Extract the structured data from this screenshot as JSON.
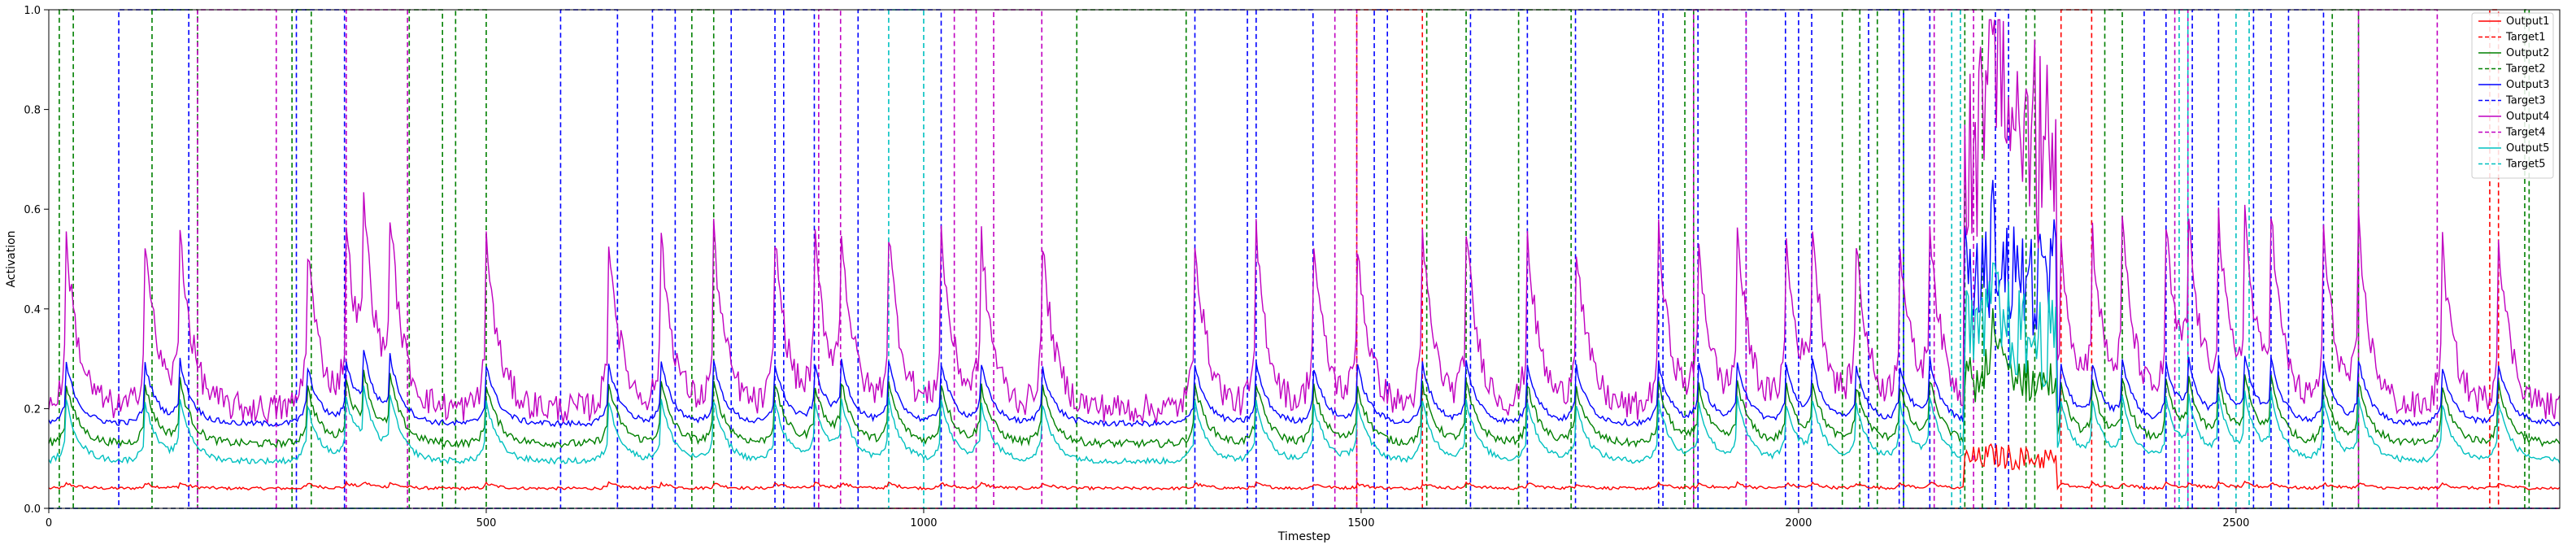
{
  "chart_data": {
    "type": "line",
    "title": "",
    "xlabel": "Timestep",
    "ylabel": "Activation",
    "xlim": [
      0,
      2870
    ],
    "ylim": [
      0,
      1.0
    ],
    "x_ticks": [
      0,
      500,
      1000,
      1500,
      2000,
      2500
    ],
    "y_ticks": [
      0.0,
      0.2,
      0.4,
      0.6,
      0.8,
      1.0
    ],
    "x_tick_labels": [
      "0",
      "500",
      "1000",
      "1500",
      "2000",
      "2500"
    ],
    "y_tick_labels": [
      "0.0",
      "0.2",
      "0.4",
      "0.6",
      "0.8",
      "1.0"
    ],
    "grid": false,
    "legend_position": "top-right",
    "series": [
      {
        "name": "Output1",
        "color": "#ff0000",
        "style": "solid",
        "base": 0.04,
        "spike": 0.01,
        "noise": 0.003
      },
      {
        "name": "Target1",
        "color": "#ff0000",
        "style": "dashed",
        "high_intervals": [
          [
            1495,
            1570
          ],
          [
            2300,
            2335
          ],
          [
            2790,
            2800
          ]
        ]
      },
      {
        "name": "Output2",
        "color": "#008000",
        "style": "solid",
        "base": 0.13,
        "spike": 0.12,
        "noise": 0.008
      },
      {
        "name": "Target2",
        "color": "#008000",
        "style": "dashed",
        "high_intervals": [
          [
            12,
            28
          ],
          [
            118,
            170
          ],
          [
            278,
            300
          ],
          [
            412,
            450
          ],
          [
            465,
            500
          ],
          [
            735,
            760
          ],
          [
            1175,
            1300
          ],
          [
            1575,
            1620
          ],
          [
            1680,
            1740
          ],
          [
            1870,
            1880
          ],
          [
            2050,
            2070
          ],
          [
            2090,
            2120
          ],
          [
            2190,
            2210
          ],
          [
            2260,
            2270
          ],
          [
            2350,
            2370
          ],
          [
            2610,
            2640
          ],
          [
            2830,
            2835
          ]
        ]
      },
      {
        "name": "Output3",
        "color": "#0000ff",
        "style": "solid",
        "base": 0.17,
        "spike": 0.12,
        "noise": 0.006
      },
      {
        "name": "Target3",
        "color": "#0000ff",
        "style": "dashed",
        "high_intervals": [
          [
            80,
            160
          ],
          [
            283,
            338
          ],
          [
            585,
            650
          ],
          [
            690,
            716
          ],
          [
            780,
            830
          ],
          [
            840,
            875
          ],
          [
            925,
            1020
          ],
          [
            1310,
            1370
          ],
          [
            1380,
            1445
          ],
          [
            1515,
            1530
          ],
          [
            1625,
            1690
          ],
          [
            1745,
            1840
          ],
          [
            1845,
            1885
          ],
          [
            1940,
            1985
          ],
          [
            2000,
            2015
          ],
          [
            2080,
            2115
          ],
          [
            2120,
            2150
          ],
          [
            2225,
            2240
          ],
          [
            2395,
            2420
          ],
          [
            2450,
            2480
          ],
          [
            2520,
            2540
          ],
          [
            2560,
            2600
          ]
        ]
      },
      {
        "name": "Output4",
        "color": "#c000c0",
        "style": "solid",
        "base": 0.2,
        "spike": 0.35,
        "noise": 0.03
      },
      {
        "name": "Target4",
        "color": "#c000c0",
        "style": "dashed",
        "high_intervals": [
          [
            170,
            260
          ],
          [
            340,
            410
          ],
          [
            880,
            905
          ],
          [
            1035,
            1060
          ],
          [
            1080,
            1135
          ],
          [
            1470,
            1495
          ],
          [
            1880,
            1940
          ],
          [
            2155,
            2200
          ],
          [
            2430,
            2445
          ],
          [
            2640,
            2730
          ]
        ]
      },
      {
        "name": "Output5",
        "color": "#00c0c0",
        "style": "solid",
        "base": 0.095,
        "spike": 0.12,
        "noise": 0.006
      },
      {
        "name": "Target5",
        "color": "#00c0c0",
        "style": "dashed",
        "high_intervals": [
          [
            960,
            1000
          ],
          [
            2175,
            2185
          ],
          [
            2435,
            2445
          ],
          [
            2500,
            2515
          ]
        ]
      }
    ],
    "spikes": [
      20,
      110,
      150,
      295,
      340,
      360,
      390,
      500,
      640,
      700,
      760,
      830,
      875,
      905,
      960,
      1020,
      1065,
      1135,
      1310,
      1380,
      1445,
      1495,
      1570,
      1620,
      1690,
      1745,
      1840,
      1885,
      1930,
      1985,
      2015,
      2065,
      2115,
      2150,
      2220,
      2300,
      2335,
      2370,
      2420,
      2445,
      2480,
      2510,
      2540,
      2600,
      2640,
      2735,
      2800
    ],
    "burst_region": [
      2190,
      2295
    ]
  }
}
